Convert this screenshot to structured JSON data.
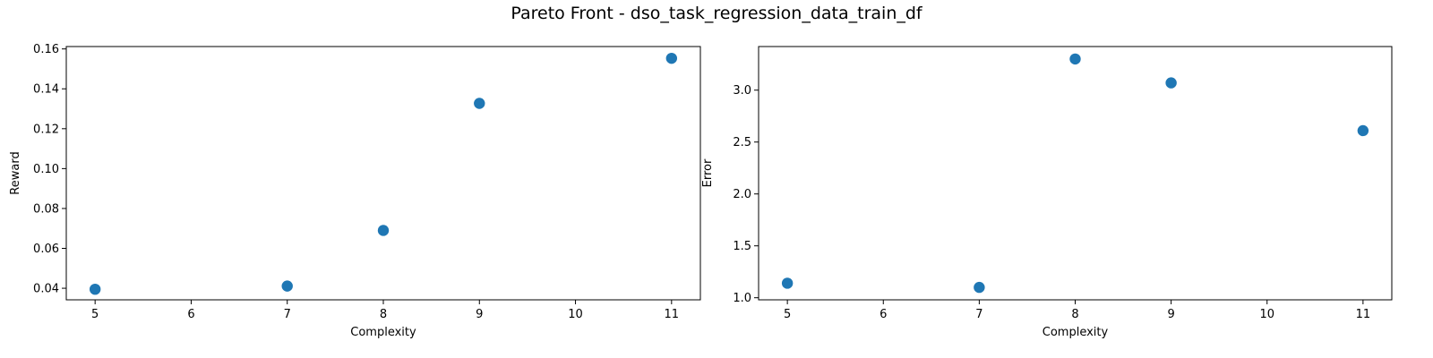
{
  "title": "Pareto Front - dso_task_regression_data_train_df",
  "chart_data": [
    {
      "type": "scatter",
      "title": "",
      "xlabel": "Complexity",
      "ylabel": "Reward",
      "xlim": [
        4.7,
        11.3
      ],
      "ylim": [
        0.0342,
        0.1612
      ],
      "xticks": [
        5,
        6,
        7,
        8,
        9,
        10,
        11
      ],
      "xtick_labels": [
        "5",
        "6",
        "7",
        "8",
        "9",
        "10",
        "11"
      ],
      "yticks": [
        0.04,
        0.06,
        0.08,
        0.1,
        0.12,
        0.14,
        0.16
      ],
      "ytick_labels": [
        "0.04",
        "0.06",
        "0.08",
        "0.10",
        "0.12",
        "0.14",
        "0.16"
      ],
      "grid": false,
      "color": "#1f77b4",
      "points": [
        {
          "x": 5,
          "y": 0.0395
        },
        {
          "x": 7,
          "y": 0.0411
        },
        {
          "x": 8,
          "y": 0.069
        },
        {
          "x": 9,
          "y": 0.1327
        },
        {
          "x": 11,
          "y": 0.1553
        }
      ]
    },
    {
      "type": "scatter",
      "title": "",
      "xlabel": "Complexity",
      "ylabel": "Error",
      "xlim": [
        4.7,
        11.3
      ],
      "ylim": [
        0.98,
        3.42
      ],
      "xticks": [
        5,
        6,
        7,
        8,
        9,
        10,
        11
      ],
      "xtick_labels": [
        "5",
        "6",
        "7",
        "8",
        "9",
        "10",
        "11"
      ],
      "yticks": [
        1.0,
        1.5,
        2.0,
        2.5,
        3.0
      ],
      "ytick_labels": [
        "1.0",
        "1.5",
        "2.0",
        "2.5",
        "3.0"
      ],
      "grid": false,
      "color": "#1f77b4",
      "points": [
        {
          "x": 5,
          "y": 1.14
        },
        {
          "x": 7,
          "y": 1.1
        },
        {
          "x": 8,
          "y": 3.3
        },
        {
          "x": 9,
          "y": 3.07
        },
        {
          "x": 11,
          "y": 2.61
        }
      ]
    }
  ]
}
